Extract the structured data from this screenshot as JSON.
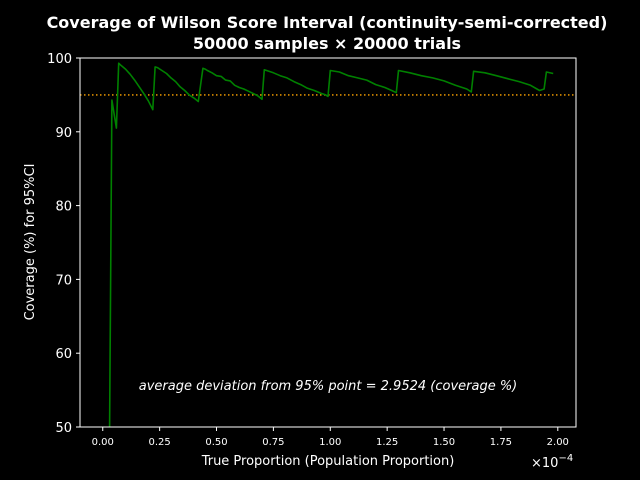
{
  "chart_data": {
    "type": "line",
    "title_line1": "Coverage of Wilson Score Interval (continuity-semi-corrected)",
    "title_line2": "50000 samples × 20000 trials",
    "xlabel": "True Proportion (Population Proportion)",
    "ylabel": "Coverage (%) for 95%CI",
    "x_scale_label": "×10",
    "x_scale_exponent": "−4",
    "x_ticks": [
      "0.00",
      "0.25",
      "0.50",
      "0.75",
      "1.00",
      "1.25",
      "1.50",
      "1.75",
      "2.00"
    ],
    "x_tick_values": [
      0.0,
      0.25,
      0.5,
      0.75,
      1.0,
      1.25,
      1.5,
      1.75,
      2.0
    ],
    "y_ticks": [
      "50",
      "60",
      "70",
      "80",
      "90",
      "100"
    ],
    "y_tick_values": [
      50,
      60,
      70,
      80,
      90,
      100
    ],
    "xlim": [
      -0.1,
      2.08
    ],
    "ylim": [
      50,
      100
    ],
    "reference_line": {
      "y": 95,
      "color": "#ffa500",
      "style": "dotted"
    },
    "series": [
      {
        "color": "#008000",
        "x": [
          0.03,
          0.04,
          0.06,
          0.07,
          0.08,
          0.1,
          0.12,
          0.14,
          0.16,
          0.18,
          0.2,
          0.22,
          0.23,
          0.24,
          0.26,
          0.28,
          0.3,
          0.32,
          0.34,
          0.36,
          0.38,
          0.4,
          0.42,
          0.44,
          0.45,
          0.46,
          0.48,
          0.5,
          0.52,
          0.54,
          0.56,
          0.58,
          0.6,
          0.62,
          0.64,
          0.66,
          0.68,
          0.7,
          0.71,
          0.72,
          0.75,
          0.78,
          0.81,
          0.84,
          0.87,
          0.9,
          0.93,
          0.96,
          0.98,
          0.99,
          1.0,
          1.04,
          1.08,
          1.12,
          1.16,
          1.2,
          1.24,
          1.27,
          1.29,
          1.3,
          1.35,
          1.4,
          1.45,
          1.5,
          1.55,
          1.6,
          1.62,
          1.63,
          1.68,
          1.73,
          1.78,
          1.83,
          1.88,
          1.92,
          1.94,
          1.95,
          1.98
        ],
        "y": [
          50.0,
          94.3,
          90.5,
          99.3,
          99.0,
          98.5,
          97.8,
          97.0,
          96.1,
          95.2,
          94.2,
          93.0,
          98.8,
          98.7,
          98.3,
          97.9,
          97.3,
          96.8,
          96.1,
          95.6,
          95.0,
          94.6,
          94.1,
          98.6,
          98.5,
          98.3,
          98.0,
          97.6,
          97.5,
          97.0,
          96.9,
          96.3,
          96.0,
          95.8,
          95.5,
          95.2,
          94.9,
          94.4,
          98.4,
          98.3,
          98.0,
          97.6,
          97.3,
          96.8,
          96.4,
          95.9,
          95.6,
          95.2,
          95.0,
          94.8,
          98.3,
          98.1,
          97.6,
          97.3,
          97.0,
          96.4,
          96.0,
          95.6,
          95.3,
          98.3,
          98.0,
          97.6,
          97.3,
          96.9,
          96.3,
          95.8,
          95.4,
          98.2,
          98.0,
          97.6,
          97.2,
          96.8,
          96.3,
          95.6,
          95.8,
          98.1,
          97.9
        ]
      }
    ],
    "annotation": "average deviation from 95% point = 2.9524 (coverage %)",
    "grid": false,
    "legend": "none"
  }
}
